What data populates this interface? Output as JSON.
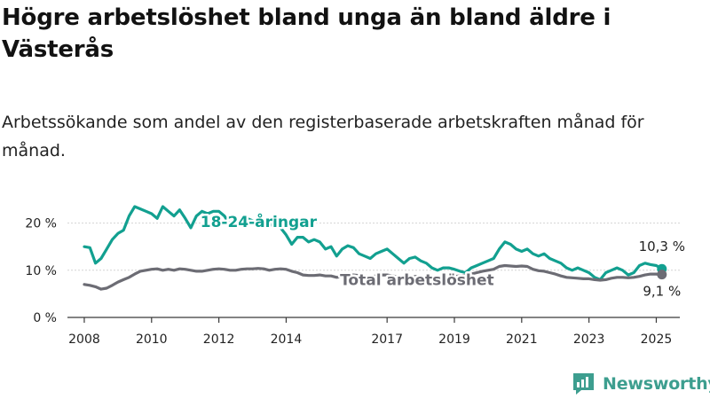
{
  "header": {
    "title": "Högre arbetslöshet bland unga än bland äldre i Västerås",
    "subtitle": "Arbetssökande som andel av den registerbaserade arbetskraften månad för månad."
  },
  "brand": {
    "name": "Newsworthy",
    "icon": "newsworthy-logo-icon",
    "color": "#3d9e8f"
  },
  "chart_data": {
    "type": "line",
    "x_ticks": [
      "2008",
      "2010",
      "2012",
      "2014",
      "2017",
      "2019",
      "2021",
      "2023",
      "2025"
    ],
    "y_ticks": [
      "0 %",
      "10 %",
      "20 %"
    ],
    "ylim": [
      0,
      25
    ],
    "grid": true,
    "series": [
      {
        "name": "18-24-åringar",
        "color": "#12a090",
        "end_label": "10,3 %",
        "points": [
          [
            "2008-01",
            15.0
          ],
          [
            "2008-03",
            14.8
          ],
          [
            "2008-05",
            11.5
          ],
          [
            "2008-07",
            12.5
          ],
          [
            "2008-09",
            14.5
          ],
          [
            "2008-11",
            16.5
          ],
          [
            "2009-01",
            17.8
          ],
          [
            "2009-03",
            18.5
          ],
          [
            "2009-05",
            21.5
          ],
          [
            "2009-07",
            23.5
          ],
          [
            "2009-09",
            23.0
          ],
          [
            "2009-11",
            22.5
          ],
          [
            "2010-01",
            22.0
          ],
          [
            "2010-03",
            21.0
          ],
          [
            "2010-05",
            23.5
          ],
          [
            "2010-07",
            22.5
          ],
          [
            "2010-09",
            21.5
          ],
          [
            "2010-11",
            22.8
          ],
          [
            "2011-01",
            21.0
          ],
          [
            "2011-03",
            19.0
          ],
          [
            "2011-05",
            21.5
          ],
          [
            "2011-07",
            22.5
          ],
          [
            "2011-09",
            22.0
          ],
          [
            "2011-11",
            22.5
          ],
          [
            "2012-01",
            22.5
          ],
          [
            "2012-03",
            21.5
          ],
          [
            "2012-05",
            19.5
          ],
          [
            "2012-07",
            20.0
          ],
          [
            "2012-09",
            20.5
          ],
          [
            "2012-11",
            21.0
          ],
          [
            "2013-01",
            20.5
          ],
          [
            "2013-03",
            20.0
          ],
          [
            "2013-05",
            19.5
          ],
          [
            "2013-07",
            19.5
          ],
          [
            "2013-09",
            19.8
          ],
          [
            "2013-11",
            19.0
          ],
          [
            "2014-01",
            17.5
          ],
          [
            "2014-03",
            15.5
          ],
          [
            "2014-05",
            17.0
          ],
          [
            "2014-07",
            17.0
          ],
          [
            "2014-09",
            16.0
          ],
          [
            "2014-11",
            16.5
          ],
          [
            "2015-01",
            16.0
          ],
          [
            "2015-03",
            14.5
          ],
          [
            "2015-05",
            15.0
          ],
          [
            "2015-07",
            13.0
          ],
          [
            "2015-09",
            14.5
          ],
          [
            "2015-11",
            15.2
          ],
          [
            "2016-01",
            14.8
          ],
          [
            "2016-03",
            13.5
          ],
          [
            "2016-05",
            13.0
          ],
          [
            "2016-07",
            12.5
          ],
          [
            "2016-09",
            13.5
          ],
          [
            "2016-11",
            14.0
          ],
          [
            "2017-01",
            14.5
          ],
          [
            "2017-03",
            13.5
          ],
          [
            "2017-05",
            12.5
          ],
          [
            "2017-07",
            11.5
          ],
          [
            "2017-09",
            12.5
          ],
          [
            "2017-11",
            12.8
          ],
          [
            "2018-01",
            12.0
          ],
          [
            "2018-03",
            11.5
          ],
          [
            "2018-05",
            10.5
          ],
          [
            "2018-07",
            10.0
          ],
          [
            "2018-09",
            10.5
          ],
          [
            "2018-11",
            10.5
          ],
          [
            "2019-01",
            10.2
          ],
          [
            "2019-03",
            9.8
          ],
          [
            "2019-05",
            9.5
          ],
          [
            "2019-07",
            10.5
          ],
          [
            "2019-09",
            11.0
          ],
          [
            "2019-11",
            11.5
          ],
          [
            "2020-01",
            12.0
          ],
          [
            "2020-03",
            12.5
          ],
          [
            "2020-05",
            14.5
          ],
          [
            "2020-07",
            16.0
          ],
          [
            "2020-09",
            15.5
          ],
          [
            "2020-11",
            14.5
          ],
          [
            "2021-01",
            14.0
          ],
          [
            "2021-03",
            14.5
          ],
          [
            "2021-05",
            13.5
          ],
          [
            "2021-07",
            13.0
          ],
          [
            "2021-09",
            13.5
          ],
          [
            "2021-11",
            12.5
          ],
          [
            "2022-01",
            12.0
          ],
          [
            "2022-03",
            11.5
          ],
          [
            "2022-05",
            10.5
          ],
          [
            "2022-07",
            10.0
          ],
          [
            "2022-09",
            10.5
          ],
          [
            "2022-11",
            10.0
          ],
          [
            "2023-01",
            9.5
          ],
          [
            "2023-03",
            8.5
          ],
          [
            "2023-05",
            8.0
          ],
          [
            "2023-07",
            9.5
          ],
          [
            "2023-09",
            10.0
          ],
          [
            "2023-11",
            10.5
          ],
          [
            "2024-01",
            10.0
          ],
          [
            "2024-03",
            9.0
          ],
          [
            "2024-05",
            9.5
          ],
          [
            "2024-07",
            11.0
          ],
          [
            "2024-09",
            11.5
          ],
          [
            "2024-11",
            11.2
          ],
          [
            "2025-01",
            11.0
          ],
          [
            "2025-03",
            10.3
          ]
        ]
      },
      {
        "name": "Total arbetslöshet",
        "color": "#6c6c74",
        "end_label": "9,1 %",
        "points": [
          [
            "2008-01",
            7.0
          ],
          [
            "2008-03",
            6.8
          ],
          [
            "2008-05",
            6.5
          ],
          [
            "2008-07",
            6.0
          ],
          [
            "2008-09",
            6.2
          ],
          [
            "2008-11",
            6.8
          ],
          [
            "2009-01",
            7.5
          ],
          [
            "2009-03",
            8.0
          ],
          [
            "2009-05",
            8.5
          ],
          [
            "2009-07",
            9.2
          ],
          [
            "2009-09",
            9.8
          ],
          [
            "2009-11",
            10.0
          ],
          [
            "2010-01",
            10.2
          ],
          [
            "2010-03",
            10.3
          ],
          [
            "2010-05",
            10.0
          ],
          [
            "2010-07",
            10.2
          ],
          [
            "2010-09",
            10.0
          ],
          [
            "2010-11",
            10.3
          ],
          [
            "2011-01",
            10.2
          ],
          [
            "2011-03",
            10.0
          ],
          [
            "2011-05",
            9.8
          ],
          [
            "2011-07",
            9.8
          ],
          [
            "2011-09",
            10.0
          ],
          [
            "2011-11",
            10.2
          ],
          [
            "2012-01",
            10.3
          ],
          [
            "2012-03",
            10.2
          ],
          [
            "2012-05",
            10.0
          ],
          [
            "2012-07",
            10.0
          ],
          [
            "2012-09",
            10.2
          ],
          [
            "2012-11",
            10.3
          ],
          [
            "2013-01",
            10.3
          ],
          [
            "2013-03",
            10.4
          ],
          [
            "2013-05",
            10.3
          ],
          [
            "2013-07",
            10.0
          ],
          [
            "2013-09",
            10.2
          ],
          [
            "2013-11",
            10.3
          ],
          [
            "2014-01",
            10.2
          ],
          [
            "2014-03",
            9.8
          ],
          [
            "2014-05",
            9.5
          ],
          [
            "2014-07",
            9.0
          ],
          [
            "2014-09",
            8.9
          ],
          [
            "2014-11",
            8.9
          ],
          [
            "2015-01",
            9.0
          ],
          [
            "2015-03",
            8.8
          ],
          [
            "2015-05",
            8.8
          ],
          [
            "2015-07",
            8.5
          ],
          [
            "2015-09",
            8.7
          ],
          [
            "2015-11",
            9.0
          ],
          [
            "2016-01",
            9.0
          ],
          [
            "2016-03",
            8.9
          ],
          [
            "2016-05",
            8.8
          ],
          [
            "2016-07",
            8.6
          ],
          [
            "2016-09",
            8.8
          ],
          [
            "2016-11",
            9.0
          ],
          [
            "2017-01",
            9.0
          ],
          [
            "2017-03",
            8.8
          ],
          [
            "2017-05",
            8.6
          ],
          [
            "2017-07",
            8.5
          ],
          [
            "2017-09",
            8.5
          ],
          [
            "2017-11",
            8.7
          ],
          [
            "2018-01",
            8.7
          ],
          [
            "2018-03",
            8.5
          ],
          [
            "2018-05",
            8.4
          ],
          [
            "2018-07",
            8.3
          ],
          [
            "2018-09",
            8.5
          ],
          [
            "2018-11",
            8.6
          ],
          [
            "2019-01",
            8.7
          ],
          [
            "2019-03",
            8.8
          ],
          [
            "2019-05",
            8.9
          ],
          [
            "2019-07",
            9.2
          ],
          [
            "2019-09",
            9.5
          ],
          [
            "2019-11",
            9.8
          ],
          [
            "2020-01",
            10.0
          ],
          [
            "2020-03",
            10.2
          ],
          [
            "2020-05",
            10.8
          ],
          [
            "2020-07",
            11.0
          ],
          [
            "2020-09",
            10.9
          ],
          [
            "2020-11",
            10.8
          ],
          [
            "2021-01",
            10.9
          ],
          [
            "2021-03",
            10.8
          ],
          [
            "2021-05",
            10.2
          ],
          [
            "2021-07",
            9.9
          ],
          [
            "2021-09",
            9.8
          ],
          [
            "2021-11",
            9.5
          ],
          [
            "2022-01",
            9.2
          ],
          [
            "2022-03",
            8.8
          ],
          [
            "2022-05",
            8.5
          ],
          [
            "2022-07",
            8.4
          ],
          [
            "2022-09",
            8.3
          ],
          [
            "2022-11",
            8.2
          ],
          [
            "2023-01",
            8.2
          ],
          [
            "2023-03",
            8.0
          ],
          [
            "2023-05",
            7.9
          ],
          [
            "2023-07",
            8.0
          ],
          [
            "2023-09",
            8.3
          ],
          [
            "2023-11",
            8.5
          ],
          [
            "2024-01",
            8.5
          ],
          [
            "2024-03",
            8.4
          ],
          [
            "2024-05",
            8.5
          ],
          [
            "2024-07",
            8.7
          ],
          [
            "2024-09",
            9.0
          ],
          [
            "2024-11",
            9.2
          ],
          [
            "2025-01",
            9.2
          ],
          [
            "2025-03",
            9.1
          ]
        ]
      }
    ]
  }
}
